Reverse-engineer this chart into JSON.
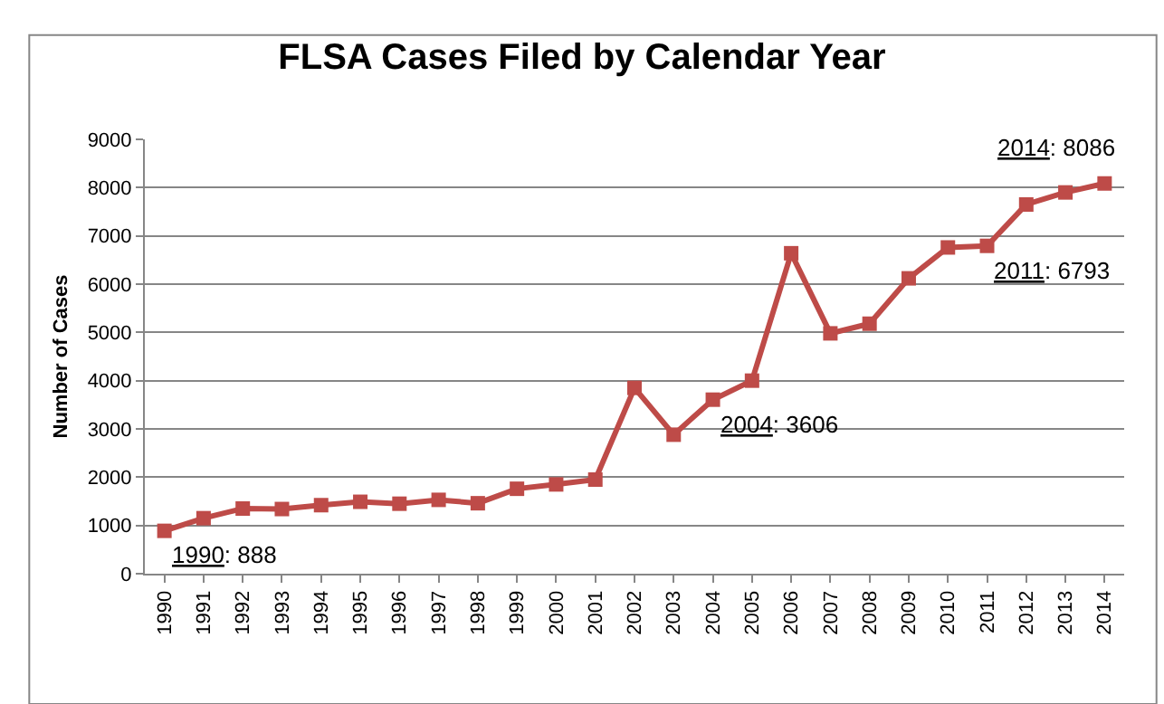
{
  "chart_data": {
    "type": "line",
    "title": "FLSA Cases Filed by Calendar Year",
    "ylabel": "Number of Cases",
    "categories": [
      "1990",
      "1991",
      "1992",
      "1993",
      "1994",
      "1995",
      "1996",
      "1997",
      "1998",
      "1999",
      "2000",
      "2001",
      "2002",
      "2003",
      "2004",
      "2005",
      "2006",
      "2007",
      "2008",
      "2009",
      "2010",
      "2011",
      "2012",
      "2013",
      "2014"
    ],
    "series": [
      {
        "color": "#be4b48",
        "values": [
          888,
          1150,
          1350,
          1340,
          1420,
          1490,
          1450,
          1530,
          1460,
          1760,
          1850,
          1950,
          3850,
          2880,
          3606,
          4000,
          6640,
          4980,
          5180,
          6120,
          6760,
          6793,
          7650,
          7900,
          8086
        ]
      }
    ],
    "ylim": [
      0,
      9000
    ],
    "yticks": [
      0,
      1000,
      2000,
      3000,
      4000,
      5000,
      6000,
      7000,
      8000,
      9000
    ],
    "grid": "y",
    "marker": "square",
    "line_style": "solid",
    "legend": false,
    "annotations": [
      {
        "text": "1990: 888",
        "x": "1990",
        "y": 888
      },
      {
        "text": "2004: 3606",
        "x": "2004",
        "y": 3606
      },
      {
        "text": "2011: 6793",
        "x": "2011",
        "y": 6793
      },
      {
        "text": "2014: 8086",
        "x": "2014",
        "y": 8086
      }
    ]
  }
}
